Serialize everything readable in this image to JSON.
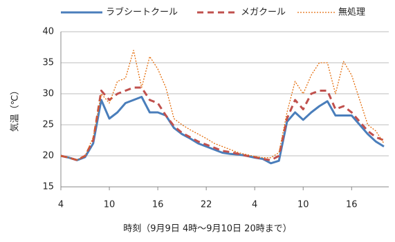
{
  "chart_data": {
    "type": "line",
    "x_label": "時刻（9月9日 4時～9月10日 20時まで）",
    "y_label": "気温（℃）",
    "categories": [
      "4",
      null,
      null,
      null,
      null,
      null,
      "10",
      null,
      null,
      null,
      null,
      null,
      "16",
      null,
      null,
      null,
      null,
      null,
      "22",
      null,
      null,
      null,
      null,
      null,
      "4",
      null,
      null,
      null,
      null,
      null,
      "10",
      null,
      null,
      null,
      null,
      null,
      "16",
      null,
      null,
      null,
      null
    ],
    "series": [
      {
        "name": "ラブシートクール",
        "color": "#4a7ebb",
        "style": "solid",
        "values": [
          20,
          19.7,
          19.3,
          19.8,
          22,
          29,
          26,
          27,
          28.5,
          29,
          29.5,
          27,
          27,
          26.5,
          24.5,
          23.5,
          22.8,
          22,
          21.5,
          21,
          20.5,
          20.3,
          20.2,
          20,
          19.7,
          19.5,
          18.8,
          19.2,
          25.5,
          27,
          25.8,
          27,
          28,
          28.8,
          26.5,
          26.5,
          26.5,
          25,
          23.5,
          22.3,
          21.5
        ]
      },
      {
        "name": "メガクール",
        "color": "#c0504d",
        "style": "dashed",
        "values": [
          20,
          19.7,
          19.3,
          20,
          22.5,
          30.5,
          29,
          30,
          30.5,
          31,
          31,
          29,
          28.5,
          26.5,
          24.8,
          23.7,
          23,
          22.3,
          21.8,
          21.3,
          20.8,
          20.6,
          20.3,
          20,
          19.8,
          19.5,
          19.3,
          20,
          26,
          29,
          27.5,
          30,
          30.5,
          30.5,
          27.5,
          28,
          27,
          25.5,
          24,
          23,
          22.5
        ]
      },
      {
        "name": "無処理",
        "color": "#e46c0a",
        "style": "dotted",
        "values": [
          20,
          19.7,
          19.3,
          20,
          23,
          30,
          28.5,
          32,
          32.5,
          37,
          31,
          36,
          34,
          31,
          26,
          25,
          24.2,
          23.5,
          22.8,
          22,
          21.5,
          21,
          20.5,
          20.2,
          19.9,
          19.7,
          19.7,
          20.5,
          27,
          32,
          30,
          33,
          35,
          35,
          30,
          35.2,
          33,
          29,
          25,
          24,
          22
        ]
      }
    ],
    "ylim": [
      15,
      40
    ],
    "yticks": [
      15,
      20,
      25,
      30,
      35,
      40
    ],
    "grid": true
  }
}
